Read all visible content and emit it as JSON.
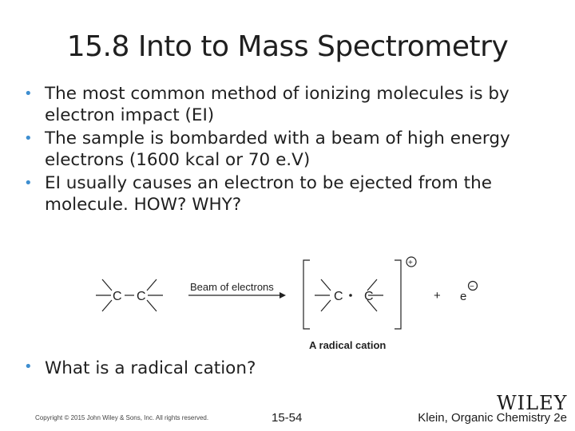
{
  "slide": {
    "title": "15.8 Into to Mass Spectrometry",
    "bullets": [
      "The most common method of ionizing molecules is by electron impact (EI)",
      "The sample is bombarded with a beam of high energy electrons (1600 kcal or 70 e.V)",
      "EI usually causes an electron to be ejected from the molecule.  HOW?  WHY?"
    ],
    "question": "What is a radical cation?"
  },
  "scheme": {
    "atom_c": "C",
    "arrow_label": "Beam of electrons",
    "plus": "+",
    "electron": "e",
    "bracket_charge": "+",
    "electron_charge": "−",
    "product_caption": "A radical cation"
  },
  "footer": {
    "copyright": "Copyright © 2015 John Wiley & Sons, Inc. All rights reserved.",
    "page": "15-54",
    "book": "Klein, Organic Chemistry 2e",
    "logo": "WILEY"
  },
  "colors": {
    "bullet": "#3e8ed0"
  }
}
